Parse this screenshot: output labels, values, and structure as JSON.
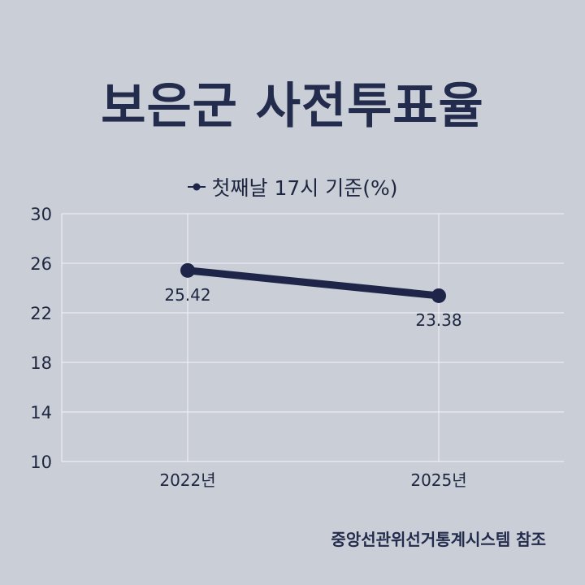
{
  "title": "보은군 사전투표율",
  "source": "중앙선관위선거통계시스템 참조",
  "colors": {
    "background": "#c9ced7",
    "line": "#1e2548",
    "title": "#232c4d",
    "grid": "#eceef2"
  },
  "chart_data": {
    "type": "line",
    "categories": [
      "2022년",
      "2025년"
    ],
    "series": [
      {
        "name": "첫째날 17시 기준(%)",
        "values": [
          25.42,
          23.38
        ],
        "labels": [
          "25.42",
          "23.38"
        ]
      }
    ],
    "ylim": [
      10,
      30
    ],
    "yticks": [
      10,
      14,
      18,
      22,
      26,
      30
    ],
    "grid": true,
    "legend": "top-center",
    "xlabel": "",
    "ylabel": ""
  }
}
